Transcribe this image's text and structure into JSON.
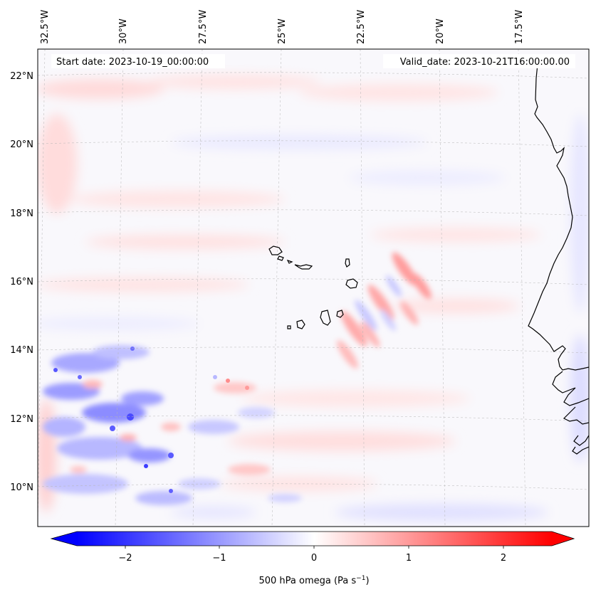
{
  "map": {
    "start_date": "Start date: 2023-10-19_00:00:00",
    "valid_date": "Valid_date: 2023-10-21T16:00:00.00",
    "lon_labels": [
      "32.5°W",
      "30°W",
      "27.5°W",
      "25°W",
      "22.5°W",
      "20°W",
      "17.5°W"
    ],
    "lat_labels": [
      "22°N",
      "20°N",
      "18°N",
      "16°N",
      "14°N",
      "12°N",
      "10°N"
    ]
  },
  "colorbar": {
    "ticks": [
      "−2",
      "−1",
      "0",
      "1",
      "2"
    ],
    "tick_values": [
      -2,
      -1,
      0,
      1,
      2
    ],
    "range": [
      -2.5,
      2.5
    ],
    "label_main": "500 hPa omega (Pa s",
    "label_sup": "−1",
    "label_close": ")",
    "cmap": "bwr",
    "extend": "both",
    "colors": {
      "negative": "#0000ff",
      "zero": "#ffffff",
      "positive": "#ff0000",
      "land_line": "#000000"
    }
  }
}
